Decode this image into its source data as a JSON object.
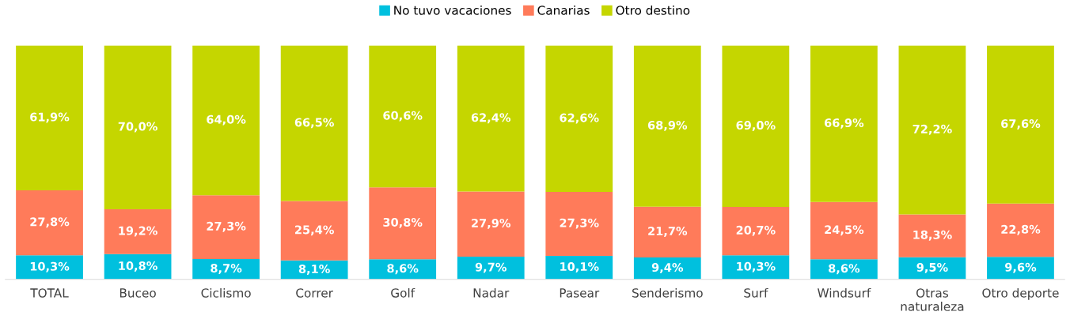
{
  "chart_data": {
    "type": "bar",
    "stacked": true,
    "legend": "top",
    "grid": false,
    "categories": [
      "TOTAL",
      "Buceo",
      "Ciclismo",
      "Correr",
      "Golf",
      "Nadar",
      "Pasear",
      "Senderismo",
      "Surf",
      "Windsurf",
      "Otras\nnaturaleza",
      "Otro deporte"
    ],
    "series": [
      {
        "name": "No tuvo vacaciones",
        "color": "#00c0de",
        "values": [
          10.3,
          10.8,
          8.7,
          8.1,
          8.6,
          9.7,
          10.1,
          9.4,
          10.3,
          8.6,
          9.5,
          9.6
        ],
        "value_labels": [
          "10,3%",
          "10,8%",
          "8,7%",
          "8,1%",
          "8,6%",
          "9,7%",
          "10,1%",
          "9,4%",
          "10,3%",
          "8,6%",
          "9,5%",
          "9,6%"
        ]
      },
      {
        "name": "Canarias",
        "color": "#ff7b5a",
        "values": [
          27.8,
          19.2,
          27.3,
          25.4,
          30.8,
          27.9,
          27.3,
          21.7,
          20.7,
          24.5,
          18.3,
          22.8
        ],
        "value_labels": [
          "27,8%",
          "19,2%",
          "27,3%",
          "25,4%",
          "30,8%",
          "27,9%",
          "27,3%",
          "21,7%",
          "20,7%",
          "24,5%",
          "18,3%",
          "22,8%"
        ]
      },
      {
        "name": "Otro destino",
        "color": "#c5d600",
        "values": [
          61.9,
          70.0,
          64.0,
          66.5,
          60.6,
          62.4,
          62.6,
          68.9,
          69.0,
          66.9,
          72.2,
          67.6
        ],
        "value_labels": [
          "61,9%",
          "70,0%",
          "64,0%",
          "66,5%",
          "60,6%",
          "62,4%",
          "62,6%",
          "68,9%",
          "69,0%",
          "66,9%",
          "72,2%",
          "67,6%"
        ]
      }
    ]
  }
}
